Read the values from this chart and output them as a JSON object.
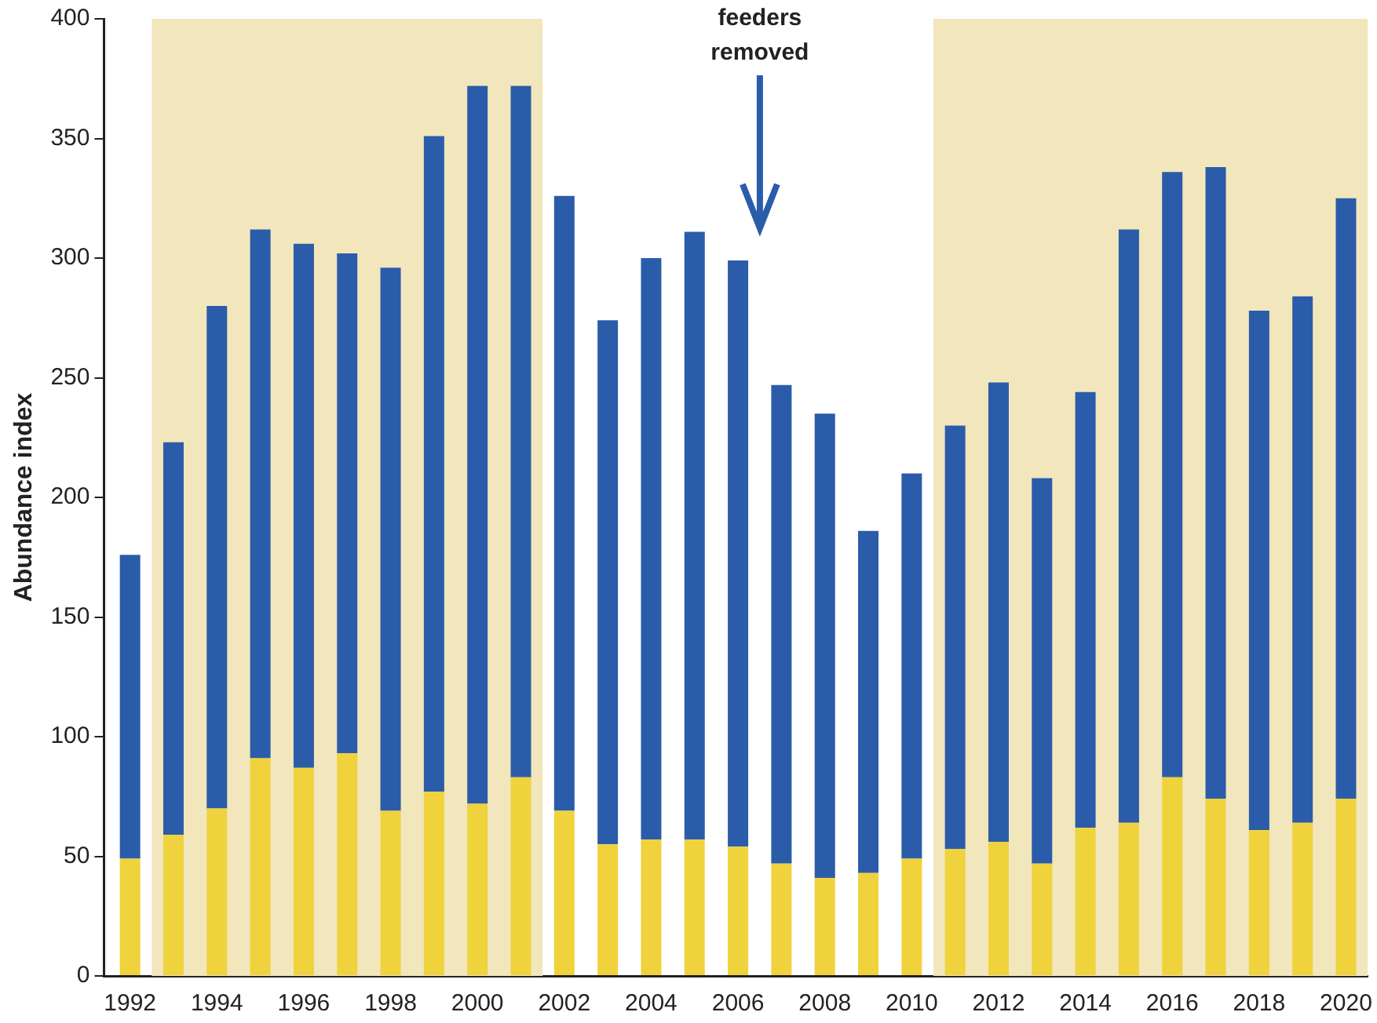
{
  "chart_data": {
    "type": "bar",
    "stacked": true,
    "ylabel": "Abundance index",
    "x": [
      1992,
      1993,
      1994,
      1995,
      1996,
      1997,
      1998,
      1999,
      2000,
      2001,
      2002,
      2003,
      2004,
      2005,
      2006,
      2007,
      2008,
      2009,
      2010,
      2011,
      2012,
      2013,
      2014,
      2015,
      2016,
      2017,
      2018,
      2019,
      2020
    ],
    "series": [
      {
        "color": "#f0d23c",
        "values": [
          49,
          59,
          70,
          91,
          87,
          93,
          69,
          77,
          72,
          83,
          69,
          55,
          57,
          57,
          54,
          47,
          41,
          43,
          49,
          53,
          56,
          47,
          62,
          64,
          83,
          74,
          61,
          64,
          74
        ]
      },
      {
        "color": "#2a5caa",
        "values": [
          127,
          164,
          210,
          221,
          219,
          209,
          227,
          274,
          300,
          289,
          257,
          219,
          243,
          254,
          245,
          200,
          194,
          143,
          161,
          177,
          192,
          161,
          182,
          248,
          253,
          264,
          217,
          220,
          251
        ]
      }
    ],
    "xlim": [
      1991.4,
      2020.5
    ],
    "xticks": [
      1992,
      1994,
      1996,
      1998,
      2000,
      2002,
      2004,
      2006,
      2008,
      2010,
      2012,
      2014,
      2016,
      2018,
      2020
    ],
    "ylim": [
      0,
      400
    ],
    "yticks": [
      0,
      50,
      100,
      150,
      200,
      250,
      300,
      350,
      400
    ],
    "bands": [
      {
        "axis": "x",
        "from": 1992.5,
        "to": 2001.5,
        "color": "#f2e6bc"
      },
      {
        "axis": "x",
        "from": 2010.5,
        "to": 2020.5,
        "color": "#f2e6bc"
      }
    ],
    "annotations": [
      "feeders removed"
    ],
    "grid": false,
    "legend": false
  }
}
